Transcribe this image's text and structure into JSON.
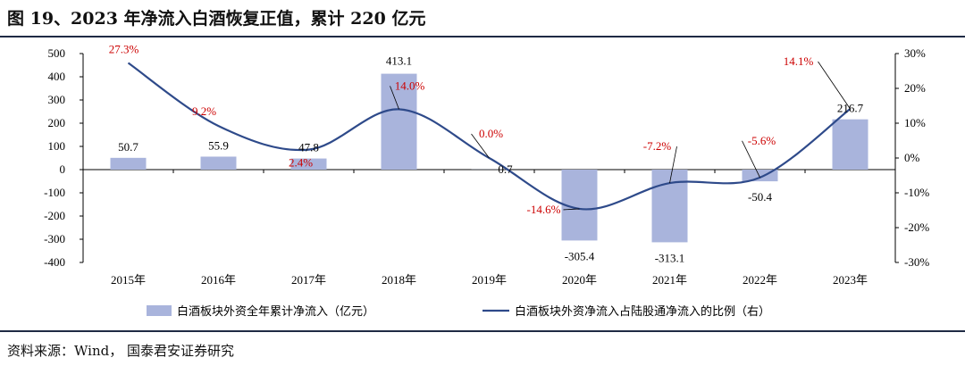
{
  "title": "图 19、2023 年净流入白酒恢复正值，累计 220 亿元",
  "source": "资料来源：Wind，  国泰君安证券研究",
  "colors": {
    "bar": "#a9b4dc",
    "line": "#2e4a8a",
    "pct_label": "#cc0000"
  },
  "chart_data": {
    "type": "bar",
    "categories": [
      "2015年",
      "2016年",
      "2017年",
      "2018年",
      "2019年",
      "2020年",
      "2021年",
      "2022年",
      "2023年"
    ],
    "series": [
      {
        "name": "白酒板块外资全年累计净流入（亿元）",
        "type": "bar",
        "axis": "left",
        "values": [
          50.7,
          55.9,
          47.8,
          413.1,
          0.7,
          -305.4,
          -313.1,
          -50.4,
          216.7
        ],
        "labels": [
          "50.7",
          "55.9",
          "47.8",
          "413.1",
          "0.7",
          "-305.4",
          "-313.1",
          "-50.4",
          "216.7"
        ]
      },
      {
        "name": "白酒板块外资净流入占陆股通净流入的比例（右）",
        "type": "line",
        "axis": "right",
        "values": [
          27.3,
          9.2,
          2.4,
          14.0,
          0.0,
          -14.6,
          -7.2,
          -5.6,
          14.1
        ],
        "labels": [
          "27.3%",
          "9.2%",
          "2.4%",
          "14.0%",
          "0.0%",
          "-14.6%",
          "-7.2%",
          "-5.6%",
          "14.1%"
        ]
      }
    ],
    "y_left": {
      "min": -400,
      "max": 500,
      "ticks": [
        -400,
        -300,
        -200,
        -100,
        0,
        100,
        200,
        300,
        400,
        500
      ],
      "tick_labels": [
        "-400",
        "-300",
        "-200",
        "-100",
        "0",
        "100",
        "200",
        "300",
        "400",
        "500"
      ]
    },
    "y_right": {
      "min": -30,
      "max": 30,
      "ticks": [
        -30,
        -20,
        -10,
        0,
        10,
        20,
        30
      ],
      "tick_labels": [
        "-30%",
        "-20%",
        "-10%",
        "0%",
        "10%",
        "20%",
        "30%"
      ]
    },
    "grid": false,
    "legend": "bottom"
  }
}
